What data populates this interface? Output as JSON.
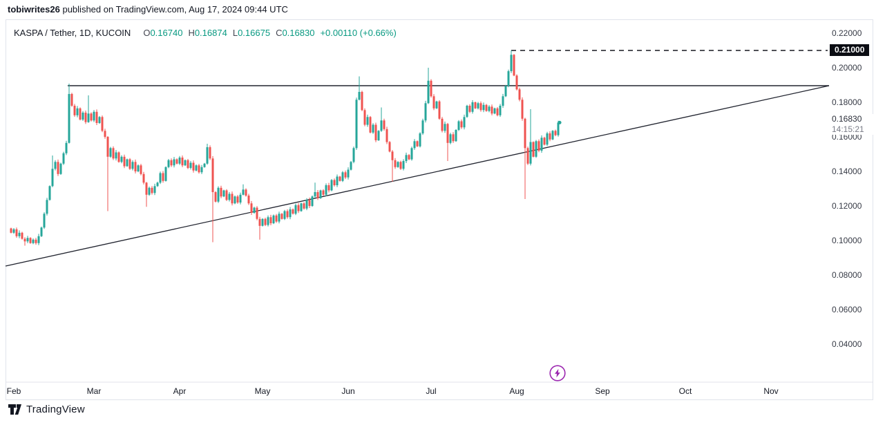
{
  "attribution": {
    "author": "tobiwrites26",
    "text": " published on TradingView.com, Aug 17, 2024 09:44 UTC"
  },
  "footer": {
    "brand": "TradingView"
  },
  "chart": {
    "legend": {
      "symbol": "KASPA / Tether, 1D, KUCOIN",
      "ohlc": [
        {
          "label": "O",
          "value": "0.16740"
        },
        {
          "label": "H",
          "value": "0.16874"
        },
        {
          "label": "L",
          "value": "0.16675"
        },
        {
          "label": "C",
          "value": "0.16830"
        }
      ],
      "change": "+0.00110 (+0.66%)"
    },
    "alert_label": {
      "text": "0.21000"
    },
    "last_label": {
      "price": "0.16830",
      "countdown": "14:15:21"
    },
    "colors": {
      "up": "#26a69a",
      "down": "#ef5350",
      "accent": "#089981",
      "line_dark": "#20232e",
      "axis_border": "#e0e3eb",
      "purple": "#9c27b0",
      "alert_bg": "#0b0d13"
    },
    "icons": [
      "lightning-icon",
      "tradingview-logo-icon"
    ]
  },
  "chart_data": {
    "type": "candlestick",
    "title": "KASPA / Tether, 1D, KUCOIN",
    "exchange": "KUCOIN",
    "timeframe": "1D",
    "grid": false,
    "legend_position": "top-left",
    "y_axis": {
      "range": [
        0.03,
        0.2245
      ],
      "ticks": [
        {
          "label": "0.22000",
          "value": 0.22
        },
        {
          "label": "0.20000",
          "value": 0.2
        },
        {
          "label": "0.18000",
          "value": 0.18
        },
        {
          "label": "0.16000",
          "value": 0.16
        },
        {
          "label": "0.14000",
          "value": 0.14
        },
        {
          "label": "0.12000",
          "value": 0.12
        },
        {
          "label": "0.10000",
          "value": 0.1
        },
        {
          "label": "0.08000",
          "value": 0.08
        },
        {
          "label": "0.06000",
          "value": 0.06
        },
        {
          "label": "0.04000",
          "value": 0.04
        }
      ]
    },
    "x_axis": {
      "months": [
        {
          "label": "Feb",
          "day": 0
        },
        {
          "label": "Mar",
          "day": 29
        },
        {
          "label": "Apr",
          "day": 60
        },
        {
          "label": "May",
          "day": 90
        },
        {
          "label": "Jun",
          "day": 121
        },
        {
          "label": "Jul",
          "day": 151
        },
        {
          "label": "Aug",
          "day": 182
        },
        {
          "label": "Sep",
          "day": 213
        },
        {
          "label": "Oct",
          "day": 243
        },
        {
          "label": "Nov",
          "day": 274
        }
      ]
    },
    "first_open": 0.107,
    "daily_closes": [
      0.1045,
      0.1065,
      0.1025,
      0.1045,
      0.101,
      0.0995,
      0.1015,
      0.0985,
      0.1005,
      0.0985,
      0.1025,
      0.1075,
      0.1155,
      0.1235,
      0.1315,
      0.1415,
      0.1455,
      0.1385,
      0.1445,
      0.1505,
      0.1565,
      0.1848,
      0.178,
      0.1725,
      0.1765,
      0.17,
      0.174,
      0.1685,
      0.1735,
      0.1695,
      0.1745,
      0.168,
      0.1715,
      0.1635,
      0.16,
      0.1485,
      0.1535,
      0.1475,
      0.151,
      0.1455,
      0.1485,
      0.143,
      0.147,
      0.1415,
      0.1455,
      0.14,
      0.1435,
      0.1385,
      0.1335,
      0.1265,
      0.1305,
      0.1275,
      0.1315,
      0.1335,
      0.139,
      0.1345,
      0.1425,
      0.1465,
      0.1435,
      0.147,
      0.1445,
      0.148,
      0.1435,
      0.1465,
      0.142,
      0.145,
      0.1405,
      0.1435,
      0.1395,
      0.1425,
      0.1445,
      0.154,
      0.1475,
      0.128,
      0.1225,
      0.1305,
      0.1255,
      0.129,
      0.1235,
      0.127,
      0.1215,
      0.1255,
      0.122,
      0.1265,
      0.1295,
      0.126,
      0.1215,
      0.116,
      0.119,
      0.1125,
      0.1085,
      0.1125,
      0.109,
      0.1135,
      0.11,
      0.1145,
      0.111,
      0.1155,
      0.1125,
      0.117,
      0.1135,
      0.118,
      0.1155,
      0.1205,
      0.117,
      0.1215,
      0.1185,
      0.1235,
      0.12,
      0.1255,
      0.128,
      0.1245,
      0.129,
      0.1265,
      0.132,
      0.129,
      0.135,
      0.132,
      0.137,
      0.1345,
      0.1395,
      0.1365,
      0.141,
      0.1455,
      0.1535,
      0.1815,
      0.186,
      0.1755,
      0.167,
      0.1715,
      0.1625,
      0.167,
      0.158,
      0.1635,
      0.1695,
      0.1645,
      0.157,
      0.1515,
      0.1465,
      0.1425,
      0.1455,
      0.1415,
      0.146,
      0.1495,
      0.147,
      0.1535,
      0.1575,
      0.1545,
      0.162,
      0.1695,
      0.1795,
      0.1925,
      0.1835,
      0.1765,
      0.1805,
      0.1705,
      0.1635,
      0.1675,
      0.1565,
      0.1615,
      0.1575,
      0.164,
      0.169,
      0.1655,
      0.1715,
      0.178,
      0.1745,
      0.18,
      0.1765,
      0.1795,
      0.1755,
      0.1785,
      0.175,
      0.1775,
      0.1735,
      0.1765,
      0.1725,
      0.178,
      0.1835,
      0.1895,
      0.198,
      0.2075,
      0.1955,
      0.1875,
      0.1815,
      0.1705,
      0.1535,
      0.1445,
      0.157,
      0.1485,
      0.1575,
      0.152,
      0.1595,
      0.1555,
      0.162,
      0.1585,
      0.1635,
      0.161,
      0.1683
    ],
    "wick_overrides": {
      "5": {
        "l": 0.097
      },
      "15": {
        "h": 0.1492
      },
      "21": {
        "h": 0.1908
      },
      "28": {
        "h": 0.184
      },
      "35": {
        "l": 0.117
      },
      "49": {
        "l": 0.1195
      },
      "71": {
        "h": 0.156
      },
      "73": {
        "l": 0.099
      },
      "84": {
        "h": 0.1325
      },
      "90": {
        "l": 0.1005
      },
      "110": {
        "h": 0.1335
      },
      "126": {
        "h": 0.195
      },
      "134": {
        "h": 0.177
      },
      "138": {
        "l": 0.134
      },
      "151": {
        "h": 0.2
      },
      "158": {
        "l": 0.146
      },
      "181": {
        "h": 0.21
      },
      "186": {
        "l": 0.124
      },
      "188": {
        "h": 0.176
      }
    },
    "last_close": 0.1683,
    "levels": {
      "dashed_alert_price": 0.21,
      "resistance_price": 0.1896,
      "resistance_from_day": 20.5
    },
    "trendline_support": {
      "from_day": -2,
      "from_price": 0.0852,
      "to_day": 296,
      "to_price": 0.1896
    }
  }
}
